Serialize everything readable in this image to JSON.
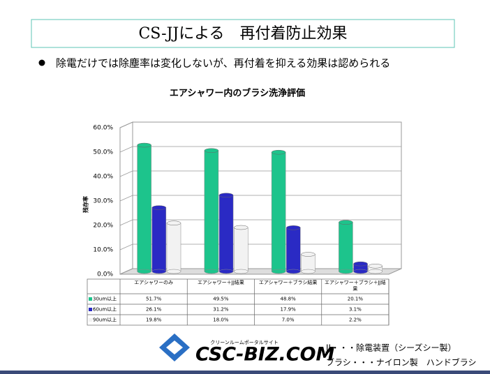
{
  "header": {
    "title": "CS-JJによる　再付着防止効果",
    "bullet": "除電だけでは除塵率は変化しないが、再付着を抑える効果は認められる"
  },
  "chart_data": {
    "type": "bar3d",
    "title": "エアシャワー内のブラシ洗浄評価",
    "y_label": "残存率",
    "categories": [
      "エアシャワーのみ",
      "エアシャワー＋JJ結果",
      "エアシャワー＋ブラシ結果",
      "エアシャワー＋ブラシ＋JJ結果"
    ],
    "series": [
      {
        "name": "30um以上",
        "color": "#1dc48c",
        "values": [
          51.7,
          49.5,
          48.8,
          20.1
        ],
        "value_labels": [
          "51.7%",
          "49.5%",
          "48.8%",
          "20.1%"
        ]
      },
      {
        "name": "60um以上",
        "color": "#2a2ac4",
        "values": [
          26.1,
          31.2,
          17.9,
          3.1
        ],
        "value_labels": [
          "26.1%",
          "31.2%",
          "17.9%",
          "3.1%"
        ]
      },
      {
        "name": "90um以上",
        "color": "#f2f2f2",
        "values": [
          19.8,
          18.0,
          7.0,
          2.2
        ],
        "value_labels": [
          "19.8%",
          "18.0%",
          "7.0%",
          "2.2%"
        ]
      }
    ],
    "ylim": [
      0,
      60
    ],
    "yticks": [
      {
        "value": 0,
        "label": "0.0%"
      },
      {
        "value": 10,
        "label": "10.0%"
      },
      {
        "value": 20,
        "label": "20.0%"
      },
      {
        "value": 30,
        "label": "30.0%"
      },
      {
        "value": 40,
        "label": "40.0%"
      },
      {
        "value": 50,
        "label": "50.0%"
      },
      {
        "value": 60,
        "label": "60.0%"
      }
    ],
    "grid": true
  },
  "footer": {
    "logo": "CSC-BIZ.COM",
    "logo_tagline": "クリーンルームポータルサイト",
    "notes": [
      "JJ・・・除電装置（シーズシー製）",
      "ブラシ・・・ナイロン製　ハンドブラシ"
    ]
  }
}
